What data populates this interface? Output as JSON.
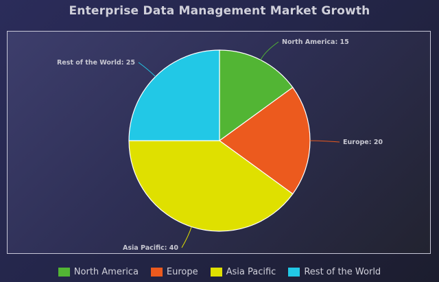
{
  "chart_data": {
    "type": "pie",
    "title": "Enterprise Data Management Market Growth",
    "categories": [
      "North America",
      "Europe",
      "Asia Pacific",
      "Rest of the World"
    ],
    "values": [
      15,
      20,
      40,
      25
    ],
    "data_labels": [
      "North America: 15",
      "Europe: 20",
      "Asia Pacific: 40",
      "Rest of the World: 25"
    ],
    "colors": [
      "#52b534",
      "#ec5a1e",
      "#dfe000",
      "#22c8e6"
    ],
    "legend": "bottom",
    "start_angle": "12 o'clock, clockwise"
  }
}
